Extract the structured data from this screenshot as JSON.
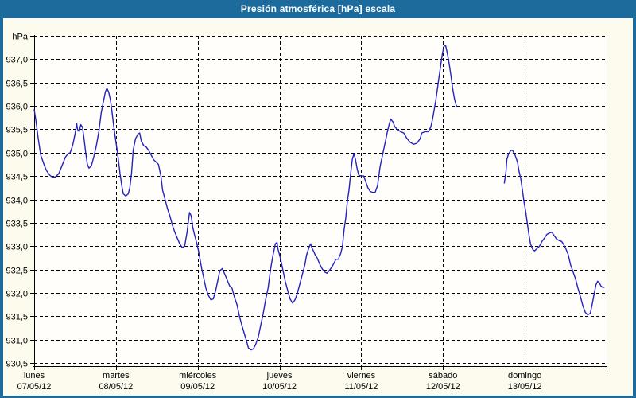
{
  "title": "Presión atmosférica [hPa] escala",
  "colors": {
    "frame_blue": "#1d6b9d",
    "frame_dark_line": "#1a4265",
    "background": "#fcfbee",
    "plot_background": "#fffefa",
    "grid": "#000000",
    "axis": "#000000",
    "line": "#2323be",
    "title_text": "#ffffff",
    "label_text": "#000000"
  },
  "chart_data": {
    "type": "line",
    "title": "Presión atmosférica [hPa] escala",
    "unit": "hPa",
    "grid": "dashed",
    "legend": "none",
    "y_axis": {
      "min": 930.5,
      "max": 937.5,
      "step": 0.5,
      "ticks": [
        {
          "value": 937.5,
          "label": "hPa"
        },
        {
          "value": 937.0,
          "label": "937,0"
        },
        {
          "value": 936.5,
          "label": "936,5"
        },
        {
          "value": 936.0,
          "label": "936,0"
        },
        {
          "value": 935.5,
          "label": "935,5"
        },
        {
          "value": 935.0,
          "label": "935,0"
        },
        {
          "value": 934.5,
          "label": "934,5"
        },
        {
          "value": 934.0,
          "label": "934,0"
        },
        {
          "value": 933.5,
          "label": "933,5"
        },
        {
          "value": 933.0,
          "label": "933,0"
        },
        {
          "value": 932.5,
          "label": "932,5"
        },
        {
          "value": 932.0,
          "label": "932,0"
        },
        {
          "value": 931.5,
          "label": "931,5"
        },
        {
          "value": 931.0,
          "label": "931,0"
        },
        {
          "value": 930.5,
          "label": "930,5"
        }
      ]
    },
    "x_axis": {
      "range_days": [
        0,
        7
      ],
      "days": [
        {
          "name": "lunes",
          "date": "07/05/12"
        },
        {
          "name": "martes",
          "date": "08/05/12"
        },
        {
          "name": "miércoles",
          "date": "09/05/12"
        },
        {
          "name": "jueves",
          "date": "10/05/12"
        },
        {
          "name": "viernes",
          "date": "11/05/12"
        },
        {
          "name": "sábado",
          "date": "12/05/12"
        },
        {
          "name": "domingo",
          "date": "13/05/12"
        }
      ]
    },
    "series": [
      {
        "name": "Presión atmosférica",
        "color": "#2323be",
        "segments": [
          [
            [
              0.0,
              935.92
            ],
            [
              0.02,
              935.7
            ],
            [
              0.05,
              935.3
            ],
            [
              0.08,
              934.95
            ],
            [
              0.12,
              934.75
            ],
            [
              0.15,
              934.62
            ],
            [
              0.19,
              934.52
            ],
            [
              0.22,
              934.48
            ],
            [
              0.26,
              934.48
            ],
            [
              0.3,
              934.55
            ],
            [
              0.34,
              934.72
            ],
            [
              0.38,
              934.9
            ],
            [
              0.41,
              934.97
            ],
            [
              0.44,
              935.0
            ],
            [
              0.47,
              935.15
            ],
            [
              0.5,
              935.4
            ],
            [
              0.52,
              935.62
            ],
            [
              0.53,
              935.5
            ],
            [
              0.55,
              935.45
            ],
            [
              0.57,
              935.6
            ],
            [
              0.59,
              935.55
            ],
            [
              0.61,
              935.3
            ],
            [
              0.63,
              935.0
            ],
            [
              0.65,
              934.75
            ],
            [
              0.67,
              934.67
            ],
            [
              0.7,
              934.72
            ],
            [
              0.73,
              934.92
            ],
            [
              0.76,
              935.15
            ],
            [
              0.79,
              935.45
            ],
            [
              0.82,
              935.85
            ],
            [
              0.85,
              936.12
            ],
            [
              0.87,
              936.3
            ],
            [
              0.89,
              936.38
            ],
            [
              0.91,
              936.3
            ],
            [
              0.93,
              936.15
            ],
            [
              0.95,
              935.9
            ],
            [
              0.97,
              935.6
            ],
            [
              0.99,
              935.35
            ],
            [
              1.01,
              935.1
            ],
            [
              1.03,
              934.85
            ],
            [
              1.05,
              934.55
            ],
            [
              1.07,
              934.3
            ],
            [
              1.09,
              934.12
            ],
            [
              1.12,
              934.07
            ],
            [
              1.15,
              934.12
            ],
            [
              1.17,
              934.25
            ],
            [
              1.19,
              934.55
            ],
            [
              1.21,
              935.05
            ],
            [
              1.24,
              935.3
            ],
            [
              1.27,
              935.4
            ],
            [
              1.29,
              935.42
            ],
            [
              1.31,
              935.25
            ],
            [
              1.34,
              935.15
            ],
            [
              1.37,
              935.12
            ],
            [
              1.4,
              935.05
            ],
            [
              1.43,
              934.95
            ],
            [
              1.46,
              934.85
            ],
            [
              1.49,
              934.8
            ],
            [
              1.52,
              934.75
            ],
            [
              1.55,
              934.5
            ],
            [
              1.57,
              934.2
            ],
            [
              1.6,
              934.0
            ],
            [
              1.63,
              933.8
            ],
            [
              1.66,
              933.65
            ],
            [
              1.69,
              933.45
            ],
            [
              1.72,
              933.3
            ],
            [
              1.75,
              933.17
            ],
            [
              1.78,
              933.05
            ],
            [
              1.81,
              932.97
            ],
            [
              1.84,
              933.0
            ],
            [
              1.87,
              933.3
            ],
            [
              1.9,
              933.72
            ],
            [
              1.92,
              933.65
            ],
            [
              1.94,
              933.4
            ],
            [
              1.96,
              933.25
            ],
            [
              1.99,
              933.05
            ],
            [
              2.01,
              932.9
            ],
            [
              2.03,
              932.7
            ],
            [
              2.05,
              932.5
            ],
            [
              2.07,
              932.35
            ],
            [
              2.1,
              932.1
            ],
            [
              2.13,
              931.95
            ],
            [
              2.16,
              931.85
            ],
            [
              2.19,
              931.87
            ],
            [
              2.22,
              932.05
            ],
            [
              2.25,
              932.3
            ],
            [
              2.27,
              932.47
            ],
            [
              2.3,
              932.52
            ],
            [
              2.33,
              932.4
            ],
            [
              2.36,
              932.28
            ],
            [
              2.39,
              932.15
            ],
            [
              2.42,
              932.1
            ],
            [
              2.45,
              931.9
            ],
            [
              2.48,
              931.75
            ],
            [
              2.51,
              931.5
            ],
            [
              2.54,
              931.3
            ],
            [
              2.57,
              931.13
            ],
            [
              2.6,
              930.95
            ],
            [
              2.62,
              930.82
            ],
            [
              2.65,
              930.78
            ],
            [
              2.68,
              930.8
            ],
            [
              2.71,
              930.9
            ],
            [
              2.74,
              931.05
            ],
            [
              2.77,
              931.3
            ],
            [
              2.8,
              931.55
            ],
            [
              2.83,
              931.85
            ],
            [
              2.86,
              932.1
            ],
            [
              2.89,
              932.5
            ],
            [
              2.92,
              932.8
            ],
            [
              2.95,
              933.05
            ],
            [
              2.97,
              933.08
            ],
            [
              2.98,
              932.95
            ],
            [
              3.01,
              932.75
            ],
            [
              3.04,
              932.5
            ],
            [
              3.07,
              932.25
            ],
            [
              3.1,
              932.05
            ],
            [
              3.13,
              931.87
            ],
            [
              3.16,
              931.78
            ],
            [
              3.19,
              931.85
            ],
            [
              3.22,
              932.0
            ],
            [
              3.25,
              932.2
            ],
            [
              3.28,
              932.4
            ],
            [
              3.31,
              932.6
            ],
            [
              3.33,
              932.8
            ],
            [
              3.36,
              932.97
            ],
            [
              3.38,
              933.05
            ],
            [
              3.4,
              932.95
            ],
            [
              3.42,
              932.88
            ],
            [
              3.44,
              932.8
            ],
            [
              3.46,
              932.75
            ],
            [
              3.49,
              932.62
            ],
            [
              3.52,
              932.52
            ],
            [
              3.55,
              932.45
            ],
            [
              3.58,
              932.42
            ],
            [
              3.61,
              932.48
            ],
            [
              3.64,
              932.55
            ],
            [
              3.67,
              932.65
            ],
            [
              3.69,
              932.72
            ],
            [
              3.72,
              932.72
            ],
            [
              3.75,
              932.85
            ],
            [
              3.77,
              933.0
            ],
            [
              3.79,
              933.35
            ],
            [
              3.81,
              933.6
            ],
            [
              3.83,
              933.95
            ],
            [
              3.85,
              934.2
            ],
            [
              3.87,
              934.55
            ],
            [
              3.89,
              934.85
            ],
            [
              3.91,
              934.98
            ],
            [
              3.93,
              934.85
            ],
            [
              3.95,
              934.65
            ],
            [
              3.97,
              934.52
            ],
            [
              4.0,
              934.5
            ],
            [
              4.03,
              934.5
            ],
            [
              4.05,
              934.4
            ],
            [
              4.08,
              934.25
            ],
            [
              4.11,
              934.17
            ],
            [
              4.14,
              934.15
            ],
            [
              4.17,
              934.15
            ],
            [
              4.2,
              934.3
            ],
            [
              4.23,
              934.7
            ],
            [
              4.26,
              934.95
            ],
            [
              4.29,
              935.2
            ],
            [
              4.32,
              935.45
            ],
            [
              4.34,
              935.6
            ],
            [
              4.36,
              935.72
            ],
            [
              4.39,
              935.65
            ],
            [
              4.41,
              935.55
            ],
            [
              4.44,
              935.5
            ],
            [
              4.48,
              935.45
            ],
            [
              4.52,
              935.42
            ],
            [
              4.56,
              935.3
            ],
            [
              4.6,
              935.22
            ],
            [
              4.64,
              935.18
            ],
            [
              4.68,
              935.2
            ],
            [
              4.72,
              935.3
            ],
            [
              4.74,
              935.42
            ],
            [
              4.78,
              935.45
            ],
            [
              4.82,
              935.45
            ],
            [
              4.85,
              935.55
            ],
            [
              4.87,
              935.7
            ],
            [
              4.89,
              935.9
            ],
            [
              4.91,
              936.1
            ],
            [
              4.93,
              936.35
            ],
            [
              4.95,
              936.6
            ],
            [
              4.97,
              936.85
            ],
            [
              4.99,
              937.1
            ],
            [
              5.01,
              937.27
            ],
            [
              5.03,
              937.3
            ],
            [
              5.05,
              937.15
            ],
            [
              5.06,
              937.05
            ],
            [
              5.08,
              936.85
            ],
            [
              5.1,
              936.6
            ],
            [
              5.12,
              936.35
            ],
            [
              5.14,
              936.15
            ],
            [
              5.16,
              936.02
            ],
            [
              5.17,
              935.98
            ]
          ],
          [
            [
              5.75,
              934.35
            ],
            [
              5.77,
              934.6
            ],
            [
              5.78,
              934.85
            ],
            [
              5.8,
              934.97
            ],
            [
              5.83,
              935.05
            ],
            [
              5.85,
              935.05
            ],
            [
              5.88,
              934.95
            ],
            [
              5.91,
              934.8
            ],
            [
              5.93,
              934.6
            ],
            [
              5.95,
              934.45
            ],
            [
              5.97,
              934.2
            ],
            [
              5.99,
              933.95
            ],
            [
              6.01,
              933.75
            ],
            [
              6.03,
              933.5
            ],
            [
              6.05,
              933.25
            ],
            [
              6.07,
              933.05
            ],
            [
              6.1,
              932.92
            ],
            [
              6.12,
              932.9
            ],
            [
              6.15,
              932.95
            ],
            [
              6.18,
              933.0
            ],
            [
              6.21,
              933.1
            ],
            [
              6.24,
              933.17
            ],
            [
              6.27,
              933.25
            ],
            [
              6.3,
              933.28
            ],
            [
              6.33,
              933.3
            ],
            [
              6.36,
              933.22
            ],
            [
              6.39,
              933.15
            ],
            [
              6.42,
              933.12
            ],
            [
              6.45,
              933.1
            ],
            [
              6.47,
              933.05
            ],
            [
              6.5,
              932.95
            ],
            [
              6.53,
              932.82
            ],
            [
              6.56,
              932.6
            ],
            [
              6.59,
              932.45
            ],
            [
              6.62,
              932.3
            ],
            [
              6.65,
              932.1
            ],
            [
              6.68,
              931.92
            ],
            [
              6.71,
              931.72
            ],
            [
              6.74,
              931.58
            ],
            [
              6.77,
              931.53
            ],
            [
              6.8,
              931.56
            ],
            [
              6.82,
              931.72
            ],
            [
              6.85,
              932.0
            ],
            [
              6.87,
              932.17
            ],
            [
              6.89,
              932.25
            ],
            [
              6.91,
              932.22
            ],
            [
              6.93,
              932.15
            ],
            [
              6.95,
              932.12
            ],
            [
              6.97,
              932.12
            ]
          ]
        ]
      }
    ]
  }
}
